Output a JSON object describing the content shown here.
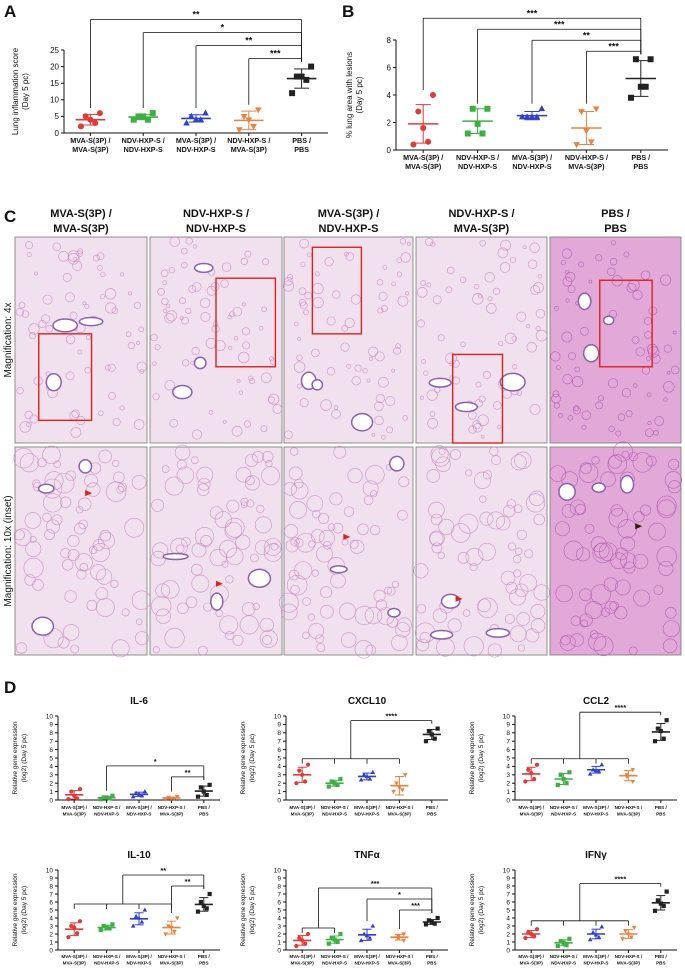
{
  "panel_labels": [
    "A",
    "B",
    "C",
    "D"
  ],
  "chart_data": [
    {
      "type": "dot",
      "ylabel": [
        "Lung inflammation score",
        "(Day 5 pc)"
      ],
      "categories": [
        [
          "MVA-S(3P) /",
          "MVA-S(3P)"
        ],
        [
          "NDV-HXP-S /",
          "NDV-HXP-S"
        ],
        [
          "MVA-S(3P) /",
          "NDV-HXP-S"
        ],
        [
          "NDV-HXP-S /",
          "MVA-S(3P)"
        ],
        [
          "PBS /",
          "PBS"
        ]
      ],
      "ylim": [
        0,
        25
      ],
      "yticks": [
        0,
        5,
        10,
        15,
        20,
        25
      ],
      "groups": [
        {
          "color": "#e53935",
          "marker": "circle",
          "values": [
            6,
            5,
            4,
            3,
            2
          ],
          "mean": 4.0,
          "error": 1.6
        },
        {
          "color": "#3cb043",
          "marker": "square",
          "values": [
            6,
            5,
            5,
            4,
            4
          ],
          "mean": 4.8,
          "error": 0.8
        },
        {
          "color": "#2e3fd1",
          "marker": "triangle",
          "values": [
            6,
            5,
            4,
            4,
            3
          ],
          "mean": 4.4,
          "error": 1.1
        },
        {
          "color": "#f0813c",
          "marker": "triangle-down",
          "values": [
            7,
            5,
            4,
            2,
            1
          ],
          "mean": 3.8,
          "error": 2.8
        },
        {
          "color": "#222222",
          "marker": "square",
          "values": [
            20,
            17,
            17,
            16,
            12
          ],
          "mean": 16.4,
          "error": 2.9
        }
      ],
      "annotations": [
        {
          "label": "**",
          "from": [
            0
          ],
          "to": 4
        },
        {
          "label": "*",
          "from": [
            1
          ],
          "to": 4
        },
        {
          "label": "**",
          "from": [
            2
          ],
          "to": 4
        },
        {
          "label": "***",
          "from": [
            3
          ],
          "to": 4
        }
      ]
    },
    {
      "type": "dot",
      "ylabel": [
        "% lung area with lesions",
        "(Day 5 pc)"
      ],
      "categories": [
        [
          "MVA-S(3P) /",
          "MVA-S(3P)"
        ],
        [
          "NDV-HXP-S /",
          "NDV-HXP-S"
        ],
        [
          "MVA-S(3P) /",
          "NDV-HXP-S"
        ],
        [
          "NDV-HXP-S /",
          "MVA-S(3P)"
        ],
        [
          "PBS /",
          "PBS"
        ]
      ],
      "ylim": [
        0,
        8
      ],
      "yticks": [
        0,
        2,
        4,
        6,
        8
      ],
      "groups": [
        {
          "color": "#e53935",
          "marker": "circle",
          "values": [
            4,
            2.8,
            1.6,
            0.6,
            0.4
          ],
          "mean": 1.9,
          "error": 1.4
        },
        {
          "color": "#3cb043",
          "marker": "square",
          "values": [
            3,
            3,
            1.9,
            1.2,
            1.2
          ],
          "mean": 2.1,
          "error": 0.9
        },
        {
          "color": "#2e3fd1",
          "marker": "triangle",
          "values": [
            3,
            2.4,
            2.4,
            2.4,
            2.4
          ],
          "mean": 2.5,
          "error": 0.3
        },
        {
          "color": "#f0813c",
          "marker": "triangle-down",
          "values": [
            3,
            2.8,
            1.4,
            0.6,
            0.4
          ],
          "mean": 1.6,
          "error": 1.2
        },
        {
          "color": "#222222",
          "marker": "square",
          "values": [
            6.6,
            6.6,
            4.6,
            4.6,
            3.8
          ],
          "mean": 5.2,
          "error": 1.3
        }
      ],
      "annotations": [
        {
          "label": "***",
          "from": [
            0
          ],
          "to": 4
        },
        {
          "label": "***",
          "from": [
            1
          ],
          "to": 4
        },
        {
          "label": "**",
          "from": [
            2
          ],
          "to": 4
        },
        {
          "label": "***",
          "from": [
            3
          ],
          "to": 4
        }
      ]
    },
    {
      "type": "dot",
      "title": "IL-6",
      "ylabel": [
        "Relative gene expression",
        "(log2) (Day 5 pc)"
      ],
      "categories": [
        [
          "MVA-S(3P) /",
          "MVA-S(3P)"
        ],
        [
          "NDV-HXP-S /",
          "NDV-HXP-S"
        ],
        [
          "MVA-S(3P) /",
          "NDV-HXP-S"
        ],
        [
          "NDV-HXP-S /",
          "MVA-S(3P)"
        ],
        [
          "PBS /",
          "PBS"
        ]
      ],
      "ylim": [
        0,
        10
      ],
      "yticks": [
        0,
        1,
        2,
        3,
        4,
        5,
        6,
        7,
        8,
        9,
        10
      ],
      "groups": [
        {
          "color": "#e53935",
          "marker": "circle",
          "values": [
            1.3,
            1.0,
            0.5,
            0.2,
            0.1
          ],
          "mean": 0.62,
          "error": 0.5
        },
        {
          "color": "#3cb043",
          "marker": "square",
          "values": [
            0.5,
            0.3,
            0.3,
            0.2,
            0.1
          ],
          "mean": 0.28,
          "error": 0.15
        },
        {
          "color": "#2e3fd1",
          "marker": "triangle",
          "values": [
            1.0,
            0.8,
            0.7,
            0.5,
            0.4
          ],
          "mean": 0.68,
          "error": 0.25
        },
        {
          "color": "#f0813c",
          "marker": "triangle-down",
          "values": [
            0.4,
            0.3,
            0.2,
            0.2,
            0.1
          ],
          "mean": 0.24,
          "error": 0.1
        },
        {
          "color": "#222222",
          "marker": "square",
          "values": [
            1.8,
            1.5,
            1.0,
            0.6,
            0.4
          ],
          "mean": 1.06,
          "error": 0.6
        }
      ],
      "annotations": [
        {
          "label": "*",
          "from": [
            1
          ],
          "to": 4
        },
        {
          "label": "**",
          "from": [
            3
          ],
          "to": 4
        }
      ]
    },
    {
      "type": "dot",
      "title": "CXCL10",
      "ylabel": [
        "Relative gene expression",
        "(log2) (Day 5 pc)"
      ],
      "categories": [
        [
          "MVA-S(3P) /",
          "MVA-S(3P)"
        ],
        [
          "NDV-HXP-S /",
          "NDV-HXP-S"
        ],
        [
          "MVA-S(3P) /",
          "NDV-HXP-S"
        ],
        [
          "NDV-HXP-S /",
          "MVA-S(3P)"
        ],
        [
          "PBS /",
          "PBS"
        ]
      ],
      "ylim": [
        0,
        10
      ],
      "yticks": [
        0,
        1,
        2,
        3,
        4,
        5,
        6,
        7,
        8,
        9,
        10
      ],
      "groups": [
        {
          "color": "#e53935",
          "marker": "circle",
          "values": [
            4.2,
            3.5,
            3.0,
            2.2,
            2.0
          ],
          "mean": 3.0,
          "error": 0.9
        },
        {
          "color": "#3cb043",
          "marker": "square",
          "values": [
            2.5,
            2.2,
            2.0,
            1.8,
            1.6
          ],
          "mean": 2.0,
          "error": 0.35
        },
        {
          "color": "#2e3fd1",
          "marker": "triangle",
          "values": [
            3.3,
            3.0,
            2.8,
            2.5,
            2.4
          ],
          "mean": 2.8,
          "error": 0.4
        },
        {
          "color": "#f0813c",
          "marker": "triangle-down",
          "values": [
            3,
            2,
            1.5,
            1.2,
            1
          ],
          "mean": 1.7,
          "error": 1.1
        },
        {
          "color": "#222222",
          "marker": "square",
          "values": [
            8.5,
            8.2,
            7.8,
            7.3,
            7.0
          ],
          "mean": 7.8,
          "error": 0.6
        }
      ],
      "annotations": [
        {
          "label": "****",
          "from": [
            0,
            1,
            2,
            3
          ],
          "to": 4
        }
      ]
    },
    {
      "type": "dot",
      "title": "CCL2",
      "ylabel": [
        "Relative gene expression",
        "(log2) (Day 5 pc)"
      ],
      "categories": [
        [
          "MVA-S(3P) /",
          "MVA-S(3P)"
        ],
        [
          "NDV-HXP-S /",
          "NDV-HXP-S"
        ],
        [
          "MVA-S(3P) /",
          "NDV-HXP-S"
        ],
        [
          "NDV-HXP-S /",
          "MVA-S(3P)"
        ],
        [
          "PBS /",
          "PBS"
        ]
      ],
      "ylim": [
        0,
        10
      ],
      "yticks": [
        0,
        1,
        2,
        3,
        4,
        5,
        6,
        7,
        8,
        9,
        10
      ],
      "groups": [
        {
          "color": "#e53935",
          "marker": "circle",
          "values": [
            4.2,
            3.6,
            3.2,
            2.5,
            2.2
          ],
          "mean": 3.1,
          "error": 0.8
        },
        {
          "color": "#3cb043",
          "marker": "square",
          "values": [
            3.3,
            3,
            2.5,
            2,
            1.8
          ],
          "mean": 2.5,
          "error": 0.65
        },
        {
          "color": "#2e3fd1",
          "marker": "triangle",
          "values": [
            4.2,
            3.6,
            3.5,
            3.4,
            3.1
          ],
          "mean": 3.6,
          "error": 0.4
        },
        {
          "color": "#f0813c",
          "marker": "triangle-down",
          "values": [
            3.6,
            3,
            2.8,
            2.2
          ],
          "mean": 2.9,
          "error": 0.6
        },
        {
          "color": "#222222",
          "marker": "square",
          "values": [
            9.5,
            8.5,
            8.2,
            7.3,
            7
          ],
          "mean": 8.1,
          "error": 1.0
        }
      ],
      "annotations": [
        {
          "label": "****",
          "from": [
            0,
            1,
            2,
            3
          ],
          "to": 4
        }
      ]
    },
    {
      "type": "dot",
      "title": "IL-10",
      "ylabel": [
        "Relative gene expression",
        "(log2) (Day 5 pc)"
      ],
      "categories": [
        [
          "MVA-S(3P) /",
          "MVA-S(3P)"
        ],
        [
          "NDV-HXP-S /",
          "NDV-HXP-S"
        ],
        [
          "MVA-S(3P) /",
          "NDV-HXP-S"
        ],
        [
          "NDV-HXP-S /",
          "MVA-S(3P)"
        ],
        [
          "PBS /",
          "PBS"
        ]
      ],
      "ylim": [
        0,
        10
      ],
      "yticks": [
        0,
        1,
        2,
        3,
        4,
        5,
        6,
        7,
        8,
        9,
        10
      ],
      "groups": [
        {
          "color": "#e53935",
          "marker": "circle",
          "values": [
            3.6,
            3.0,
            2.8,
            2.1,
            1.6
          ],
          "mean": 2.6,
          "error": 0.8
        },
        {
          "color": "#3cb043",
          "marker": "square",
          "values": [
            3.2,
            3.0,
            2.8,
            2.7,
            2.5
          ],
          "mean": 2.8,
          "error": 0.3
        },
        {
          "color": "#2e3fd1",
          "marker": "triangle",
          "values": [
            5,
            4.2,
            4,
            3.5,
            3
          ],
          "mean": 3.9,
          "error": 0.75
        },
        {
          "color": "#f0813c",
          "marker": "triangle-down",
          "values": [
            4,
            3,
            2.8,
            2.3,
            2
          ],
          "mean": 2.8,
          "error": 0.8
        },
        {
          "color": "#222222",
          "marker": "square",
          "values": [
            7,
            6,
            5.5,
            5.2,
            4.8
          ],
          "mean": 5.7,
          "error": 0.85
        }
      ],
      "annotations": [
        {
          "label": "**",
          "from": [
            0,
            1,
            2,
            3
          ],
          "to": 4
        },
        {
          "label": "**",
          "from": [
            3
          ],
          "to": 4
        }
      ]
    },
    {
      "type": "dot",
      "title": "TNFα",
      "ylabel": [
        "Relative gene expression",
        "(log2) (Day 5 pc)"
      ],
      "categories": [
        [
          "MVA-S(3P) /",
          "MVA-S(3P)"
        ],
        [
          "NDV-HXP-S /",
          "NDV-HXP-S"
        ],
        [
          "MVA-S(3P) /",
          "NDV-HXP-S"
        ],
        [
          "NDV-HXP-S /",
          "MVA-S(3P)"
        ],
        [
          "PBS /",
          "PBS"
        ]
      ],
      "ylim": [
        0,
        10
      ],
      "yticks": [
        0,
        1,
        2,
        3,
        4,
        5,
        6,
        7,
        8,
        9,
        10
      ],
      "groups": [
        {
          "color": "#e53935",
          "marker": "circle",
          "values": [
            2,
            1.5,
            1.2,
            0.8,
            0.5
          ],
          "mean": 1.2,
          "error": 0.6
        },
        {
          "color": "#3cb043",
          "marker": "square",
          "values": [
            2,
            1.5,
            1.3,
            1,
            0.8
          ],
          "mean": 1.3,
          "error": 0.45
        },
        {
          "color": "#2e3fd1",
          "marker": "triangle",
          "values": [
            3,
            2,
            1.8,
            1.5,
            1.2
          ],
          "mean": 1.9,
          "error": 0.7
        },
        {
          "color": "#f0813c",
          "marker": "triangle-down",
          "values": [
            2,
            1.8,
            1.5,
            1.2
          ],
          "mean": 1.6,
          "error": 0.35
        },
        {
          "color": "#222222",
          "marker": "square",
          "values": [
            4,
            3.7,
            3.5,
            3.3,
            3.2
          ],
          "mean": 3.5,
          "error": 0.3
        }
      ],
      "annotations": [
        {
          "label": "***",
          "from": [
            0,
            1
          ],
          "to": 4
        },
        {
          "label": "*",
          "from": [
            2
          ],
          "to": 4
        },
        {
          "label": "***",
          "from": [
            3
          ],
          "to": 4
        }
      ]
    },
    {
      "type": "dot",
      "title": "IFNγ",
      "ylabel": [
        "Relative gene expression",
        "(log2) (Day 5 pc)"
      ],
      "categories": [
        [
          "MVA-S(3P) /",
          "MVA-S(3P)"
        ],
        [
          "NDV-HXP-S /",
          "NDV-HXP-S"
        ],
        [
          "MVA-S(3P) /",
          "NDV-HXP-S"
        ],
        [
          "NDV-HXP-S /",
          "MVA-S(3P)"
        ],
        [
          "PBS /",
          "PBS"
        ]
      ],
      "ylim": [
        0,
        10
      ],
      "yticks": [
        0,
        1,
        2,
        3,
        4,
        5,
        6,
        7,
        8,
        9,
        10
      ],
      "groups": [
        {
          "color": "#e53935",
          "marker": "circle",
          "values": [
            2.6,
            2.2,
            2,
            1.7,
            1.5
          ],
          "mean": 2.0,
          "error": 0.45
        },
        {
          "color": "#3cb043",
          "marker": "square",
          "values": [
            1.4,
            1.1,
            0.9,
            0.6,
            0.5
          ],
          "mean": 0.9,
          "error": 0.37
        },
        {
          "color": "#2e3fd1",
          "marker": "triangle",
          "values": [
            2.9,
            2.2,
            1.9,
            1.6,
            1.3
          ],
          "mean": 2.0,
          "error": 0.6
        },
        {
          "color": "#f0813c",
          "marker": "triangle-down",
          "values": [
            2.8,
            2.4,
            2,
            1.6,
            1.4
          ],
          "mean": 2.0,
          "error": 0.55
        },
        {
          "color": "#222222",
          "marker": "square",
          "values": [
            7.3,
            6.2,
            5.8,
            5.5,
            4.9
          ],
          "mean": 5.9,
          "error": 0.9
        }
      ],
      "annotations": [
        {
          "label": "****",
          "from": [
            0,
            1,
            2,
            3
          ],
          "to": 4
        }
      ]
    }
  ],
  "histology": {
    "columns": [
      [
        "MVA-S(3P) /",
        "MVA-S(3P)"
      ],
      [
        "NDV-HXP-S /",
        "NDV-HXP-S"
      ],
      [
        "MVA-S(3P) /",
        "NDV-HXP-S"
      ],
      [
        "NDV-HXP-S /",
        "MVA-S(3P)"
      ],
      [
        "PBS /",
        "PBS"
      ]
    ],
    "rows": [
      "Magnification: 4x",
      "Magnification: 10x (inset)"
    ]
  }
}
